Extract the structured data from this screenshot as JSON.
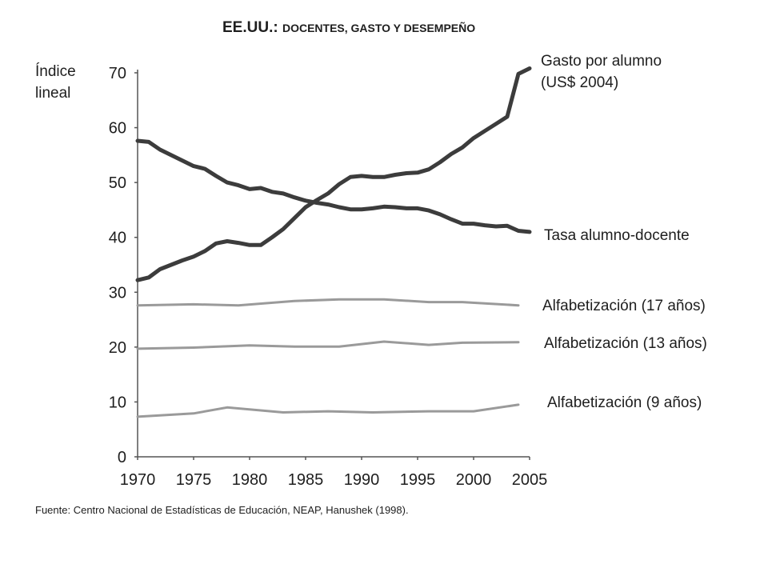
{
  "chart_data": {
    "type": "line",
    "title": "EE.UU.: DOCENTES, GASTO Y DESEMPEÑO",
    "title_parts": {
      "main": "EE.UU.: ",
      "rest": "DOCENTES, GASTO Y DESEMPEÑO"
    },
    "ylabel": [
      "Índice",
      "lineal"
    ],
    "xlabel": "",
    "xlim": [
      1970,
      2005
    ],
    "ylim": [
      0,
      70
    ],
    "xticks": [
      "1970",
      "1975",
      "1980",
      "1985",
      "1990",
      "1995",
      "2000",
      "2005"
    ],
    "xtick_values": [
      1970,
      1975,
      1980,
      1985,
      1990,
      1995,
      2000,
      2005
    ],
    "yticks": [
      "0",
      "10",
      "20",
      "30",
      "40",
      "50",
      "60",
      "70"
    ],
    "ytick_values": [
      0,
      10,
      20,
      30,
      40,
      50,
      60,
      70
    ],
    "grid": false,
    "legend": "direct labels at line ends (right)",
    "series": [
      {
        "name": "Gasto por alumno (US$ 2004)",
        "label_lines": [
          "Gasto por alumno",
          "(US$ 2004)"
        ],
        "color": "#3c3c3c",
        "x": [
          1970,
          1971,
          1972,
          1973,
          1974,
          1975,
          1976,
          1977,
          1978,
          1979,
          1980,
          1981,
          1982,
          1983,
          1984,
          1985,
          1986,
          1987,
          1988,
          1989,
          1990,
          1991,
          1992,
          1993,
          1994,
          1995,
          1996,
          1997,
          1998,
          1999,
          2000,
          2001,
          2002,
          2003,
          2004,
          2005
        ],
        "y": [
          32.2,
          32.7,
          34.2,
          35.0,
          35.8,
          36.5,
          37.5,
          38.9,
          39.3,
          39.0,
          38.6,
          38.6,
          40.0,
          41.5,
          43.5,
          45.5,
          46.8,
          48.0,
          49.7,
          51.0,
          51.2,
          51.0,
          51.0,
          51.4,
          51.7,
          51.8,
          52.4,
          53.7,
          55.2,
          56.4,
          58.1,
          59.4,
          60.7,
          62.0,
          69.8,
          70.8
        ]
      },
      {
        "name": "Tasa alumno-docente",
        "label_lines": [
          "Tasa alumno-docente"
        ],
        "color": "#3c3c3c",
        "x": [
          1970,
          1971,
          1972,
          1973,
          1974,
          1975,
          1976,
          1977,
          1978,
          1979,
          1980,
          1981,
          1982,
          1983,
          1984,
          1985,
          1986,
          1987,
          1988,
          1989,
          1990,
          1991,
          1992,
          1993,
          1994,
          1995,
          1996,
          1997,
          1998,
          1999,
          2000,
          2001,
          2002,
          2003,
          2004,
          2005
        ],
        "y": [
          57.6,
          57.4,
          56.0,
          55.0,
          54.0,
          53.0,
          52.5,
          51.2,
          50.0,
          49.5,
          48.8,
          49.0,
          48.3,
          48.0,
          47.3,
          46.7,
          46.3,
          46.0,
          45.5,
          45.1,
          45.1,
          45.3,
          45.6,
          45.5,
          45.3,
          45.3,
          44.9,
          44.2,
          43.3,
          42.5,
          42.5,
          42.2,
          42.0,
          42.1,
          41.2,
          41.0
        ]
      },
      {
        "name": "Alfabetización (17 años)",
        "label_lines": [
          "Alfabetización (17 años)"
        ],
        "color": "#9a9a9a",
        "x": [
          1970,
          1975,
          1979,
          1984,
          1988,
          1992,
          1996,
          1999,
          2004
        ],
        "y": [
          27.6,
          27.8,
          27.6,
          28.4,
          28.7,
          28.7,
          28.2,
          28.2,
          27.6
        ]
      },
      {
        "name": "Alfabetización (13 años)",
        "label_lines": [
          "Alfabetización (13 años)"
        ],
        "color": "#9a9a9a",
        "x": [
          1970,
          1975,
          1980,
          1984,
          1988,
          1992,
          1996,
          1999,
          2004
        ],
        "y": [
          19.7,
          19.9,
          20.3,
          20.1,
          20.1,
          21.0,
          20.4,
          20.8,
          20.9
        ]
      },
      {
        "name": "Alfabetización (9 años)",
        "label_lines": [
          "Alfabetización (9 años)"
        ],
        "color": "#9a9a9a",
        "x": [
          1970,
          1975,
          1978,
          1983,
          1987,
          1991,
          1996,
          2000,
          2004
        ],
        "y": [
          7.3,
          7.9,
          9.0,
          8.1,
          8.3,
          8.1,
          8.3,
          8.3,
          9.5
        ]
      }
    ]
  },
  "source": "Fuente: Centro Nacional de Estadísticas de Educación, NEAP, Hanushek (1998)."
}
